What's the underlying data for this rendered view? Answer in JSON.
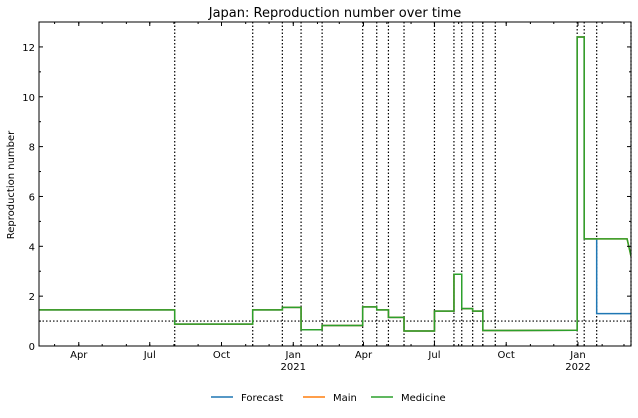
{
  "chart_data": {
    "type": "line",
    "title": "Japan: Reproduction number over time",
    "xlabel": "",
    "ylabel": "Reproduction number",
    "xlim": [
      "2020-02-10",
      "2022-03-10"
    ],
    "ylim": [
      0,
      13
    ],
    "yticks": [
      0,
      2,
      4,
      6,
      8,
      10,
      12
    ],
    "xticks": [
      {
        "date": "2020-04-01",
        "label": "Apr",
        "year": ""
      },
      {
        "date": "2020-07-01",
        "label": "Jul",
        "year": ""
      },
      {
        "date": "2020-10-01",
        "label": "Oct",
        "year": ""
      },
      {
        "date": "2021-01-01",
        "label": "Jan",
        "year": "2021"
      },
      {
        "date": "2021-04-01",
        "label": "Apr",
        "year": ""
      },
      {
        "date": "2021-07-01",
        "label": "Jul",
        "year": ""
      },
      {
        "date": "2021-10-01",
        "label": "Oct",
        "year": ""
      },
      {
        "date": "2022-01-01",
        "label": "Jan",
        "year": "2022"
      }
    ],
    "reference_line": {
      "y": 1.0,
      "style": "dotted"
    },
    "change_dates": [
      "2020-08-02",
      "2020-11-10",
      "2020-12-18",
      "2021-01-11",
      "2021-02-07",
      "2021-03-31",
      "2021-04-18",
      "2021-05-03",
      "2021-05-23",
      "2021-07-01",
      "2021-07-26",
      "2021-08-05",
      "2021-08-19",
      "2021-09-01",
      "2021-09-17",
      "2021-12-31",
      "2022-01-09",
      "2022-01-25",
      "2022-03-10"
    ],
    "series": [
      {
        "name": "Forecast",
        "color": "#1f77b4",
        "points": [
          [
            "2020-02-10",
            1.45
          ],
          [
            "2020-08-02",
            1.45
          ],
          [
            "2020-08-02",
            0.88
          ],
          [
            "2020-11-10",
            0.88
          ],
          [
            "2020-11-10",
            1.45
          ],
          [
            "2020-12-18",
            1.45
          ],
          [
            "2020-12-18",
            1.55
          ],
          [
            "2021-01-11",
            1.55
          ],
          [
            "2021-01-11",
            0.65
          ],
          [
            "2021-02-07",
            0.65
          ],
          [
            "2021-02-07",
            0.82
          ],
          [
            "2021-03-31",
            0.82
          ],
          [
            "2021-03-31",
            1.57
          ],
          [
            "2021-04-18",
            1.57
          ],
          [
            "2021-04-18",
            1.45
          ],
          [
            "2021-05-03",
            1.45
          ],
          [
            "2021-05-03",
            1.15
          ],
          [
            "2021-05-23",
            1.15
          ],
          [
            "2021-05-23",
            0.6
          ],
          [
            "2021-07-01",
            0.6
          ],
          [
            "2021-07-01",
            1.4
          ],
          [
            "2021-07-26",
            1.4
          ],
          [
            "2021-07-26",
            2.88
          ],
          [
            "2021-08-05",
            2.88
          ],
          [
            "2021-08-05",
            1.5
          ],
          [
            "2021-08-19",
            1.5
          ],
          [
            "2021-08-19",
            1.4
          ],
          [
            "2021-09-01",
            1.4
          ],
          [
            "2021-09-01",
            0.62
          ],
          [
            "2021-12-31",
            0.63
          ],
          [
            "2021-12-31",
            12.4
          ],
          [
            "2022-01-09",
            12.4
          ],
          [
            "2022-01-09",
            4.3
          ],
          [
            "2022-01-25",
            4.3
          ],
          [
            "2022-01-25",
            1.3
          ],
          [
            "2022-03-10",
            1.3
          ]
        ]
      },
      {
        "name": "Main",
        "color": "#ff7f0e",
        "points": [
          [
            "2020-02-10",
            1.45
          ],
          [
            "2020-08-02",
            1.45
          ],
          [
            "2020-08-02",
            0.88
          ],
          [
            "2020-11-10",
            0.88
          ],
          [
            "2020-11-10",
            1.45
          ],
          [
            "2020-12-18",
            1.45
          ],
          [
            "2020-12-18",
            1.55
          ],
          [
            "2021-01-11",
            1.55
          ],
          [
            "2021-01-11",
            0.65
          ],
          [
            "2021-02-07",
            0.65
          ],
          [
            "2021-02-07",
            0.82
          ],
          [
            "2021-03-31",
            0.82
          ],
          [
            "2021-03-31",
            1.57
          ],
          [
            "2021-04-18",
            1.57
          ],
          [
            "2021-04-18",
            1.45
          ],
          [
            "2021-05-03",
            1.45
          ],
          [
            "2021-05-03",
            1.15
          ],
          [
            "2021-05-23",
            1.15
          ],
          [
            "2021-05-23",
            0.6
          ],
          [
            "2021-07-01",
            0.6
          ],
          [
            "2021-07-01",
            1.4
          ],
          [
            "2021-07-26",
            1.4
          ],
          [
            "2021-07-26",
            2.88
          ],
          [
            "2021-08-05",
            2.88
          ],
          [
            "2021-08-05",
            1.5
          ],
          [
            "2021-08-19",
            1.5
          ],
          [
            "2021-08-19",
            1.4
          ],
          [
            "2021-09-01",
            1.4
          ],
          [
            "2021-09-01",
            0.62
          ],
          [
            "2021-12-31",
            0.63
          ],
          [
            "2021-12-31",
            12.4
          ],
          [
            "2022-01-09",
            12.4
          ],
          [
            "2022-01-09",
            4.3
          ],
          [
            "2022-03-05",
            4.3
          ],
          [
            "2022-03-10",
            3.6
          ]
        ]
      },
      {
        "name": "Medicine",
        "color": "#2ca02c",
        "points": [
          [
            "2020-02-10",
            1.45
          ],
          [
            "2020-08-02",
            1.45
          ],
          [
            "2020-08-02",
            0.88
          ],
          [
            "2020-11-10",
            0.88
          ],
          [
            "2020-11-10",
            1.45
          ],
          [
            "2020-12-18",
            1.45
          ],
          [
            "2020-12-18",
            1.55
          ],
          [
            "2021-01-11",
            1.55
          ],
          [
            "2021-01-11",
            0.65
          ],
          [
            "2021-02-07",
            0.65
          ],
          [
            "2021-02-07",
            0.82
          ],
          [
            "2021-03-31",
            0.82
          ],
          [
            "2021-03-31",
            1.57
          ],
          [
            "2021-04-18",
            1.57
          ],
          [
            "2021-04-18",
            1.45
          ],
          [
            "2021-05-03",
            1.45
          ],
          [
            "2021-05-03",
            1.15
          ],
          [
            "2021-05-23",
            1.15
          ],
          [
            "2021-05-23",
            0.6
          ],
          [
            "2021-07-01",
            0.6
          ],
          [
            "2021-07-01",
            1.4
          ],
          [
            "2021-07-26",
            1.4
          ],
          [
            "2021-07-26",
            2.88
          ],
          [
            "2021-08-05",
            2.88
          ],
          [
            "2021-08-05",
            1.5
          ],
          [
            "2021-08-19",
            1.5
          ],
          [
            "2021-08-19",
            1.4
          ],
          [
            "2021-09-01",
            1.4
          ],
          [
            "2021-09-01",
            0.62
          ],
          [
            "2021-12-31",
            0.63
          ],
          [
            "2021-12-31",
            12.4
          ],
          [
            "2022-01-09",
            12.4
          ],
          [
            "2022-01-09",
            4.3
          ],
          [
            "2022-03-05",
            4.3
          ],
          [
            "2022-03-10",
            3.6
          ]
        ]
      }
    ],
    "legend": {
      "placement": "bottom-center",
      "entries": [
        "Forecast",
        "Main",
        "Medicine"
      ]
    },
    "grid": false
  }
}
